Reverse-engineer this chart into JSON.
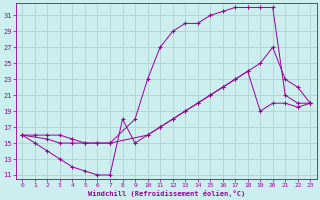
{
  "xlabel": "Windchill (Refroidissement éolien,°C)",
  "bg_color": "#cceeee",
  "grid_color": "#aacccc",
  "line_color": "#990099",
  "xlim": [
    -0.5,
    23.5
  ],
  "ylim": [
    10.5,
    32.5
  ],
  "xticks": [
    0,
    1,
    2,
    3,
    4,
    5,
    6,
    7,
    8,
    9,
    10,
    11,
    12,
    13,
    14,
    15,
    16,
    17,
    18,
    19,
    20,
    21,
    22,
    23
  ],
  "yticks": [
    11,
    13,
    15,
    17,
    19,
    21,
    23,
    25,
    27,
    29,
    31
  ],
  "line1_x": [
    0,
    1,
    2,
    3,
    4,
    5,
    6,
    7,
    8,
    9,
    10,
    11,
    12,
    13,
    14,
    15,
    16,
    17,
    18,
    19,
    20,
    21,
    22,
    23
  ],
  "line1_y": [
    16,
    15,
    14,
    13,
    12,
    11.5,
    11,
    11,
    18,
    15,
    16,
    17,
    18,
    19,
    20,
    21,
    22,
    23,
    24,
    19,
    20,
    20,
    19.5,
    20
  ],
  "line2_x": [
    0,
    2,
    3,
    4,
    5,
    6,
    7,
    10,
    11,
    12,
    13,
    14,
    15,
    16,
    17,
    18,
    19,
    20,
    21,
    22,
    23
  ],
  "line2_y": [
    16,
    15.5,
    15,
    15,
    15,
    15,
    15,
    16,
    17,
    18,
    19,
    20,
    21,
    22,
    23,
    24,
    25,
    27,
    23,
    22,
    20
  ],
  "line3_x": [
    0,
    1,
    2,
    3,
    4,
    5,
    6,
    7,
    9,
    10,
    11,
    12,
    13,
    14,
    15,
    16,
    17,
    18,
    19,
    20,
    21,
    22,
    23
  ],
  "line3_y": [
    16,
    16,
    16,
    16,
    15.5,
    15,
    15,
    15,
    18,
    23,
    27,
    29,
    30,
    30,
    31,
    31.5,
    32,
    32,
    32,
    32,
    21,
    20,
    20
  ]
}
